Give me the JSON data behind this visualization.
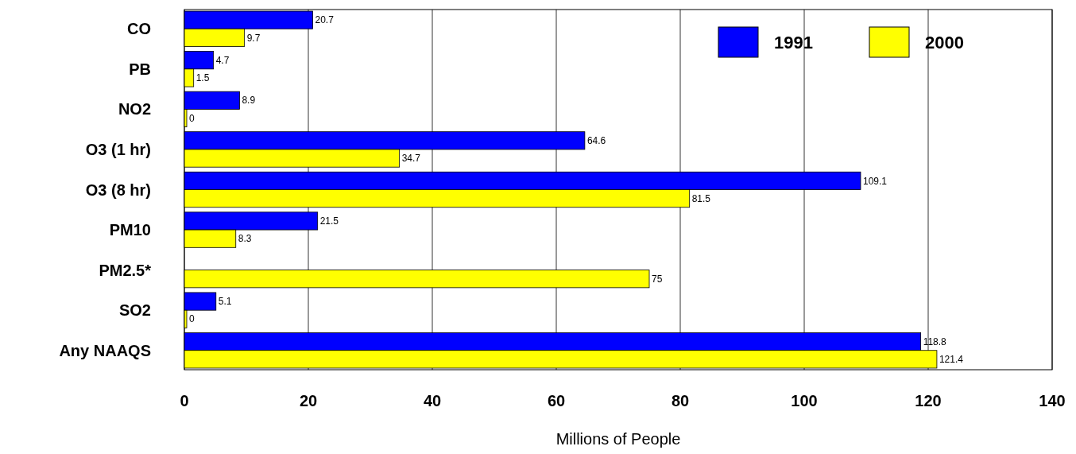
{
  "chart_data": {
    "type": "bar",
    "orientation": "horizontal",
    "xlabel": "Millions of People",
    "categories": [
      "CO",
      "PB",
      "NO2",
      "O3 (1 hr)",
      "O3 (8 hr)",
      "PM10",
      "PM2.5*",
      "SO2",
      "Any NAAQS"
    ],
    "series": [
      {
        "name": "1991",
        "color": "#0000ff",
        "values": [
          20.7,
          4.7,
          8.9,
          64.6,
          109.1,
          21.5,
          null,
          5.1,
          118.8
        ]
      },
      {
        "name": "2000",
        "color": "#ffff00",
        "values": [
          9.7,
          1.5,
          0,
          34.7,
          81.5,
          8.3,
          75,
          0,
          121.4
        ]
      }
    ],
    "xlim": [
      0,
      140
    ],
    "xticks": [
      0,
      20,
      40,
      60,
      80,
      100,
      120,
      140
    ],
    "grid": "x",
    "legend": "top right",
    "data_labels": true
  }
}
